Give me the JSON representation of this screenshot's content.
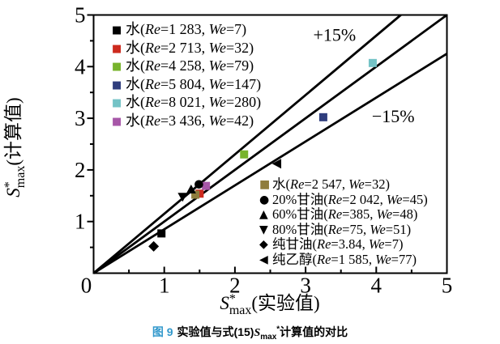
{
  "caption": {
    "fig": "图 9",
    "pre": "实验值与式(15)",
    "sym": "S",
    "sub": "max",
    "sup": "*",
    "post": "计算值的对比",
    "fig_color": "#3399cc"
  },
  "chart_data": {
    "type": "scatter",
    "xlim": [
      0,
      5
    ],
    "ylim": [
      0,
      5
    ],
    "grid": false,
    "x_major_ticks": [
      0,
      1,
      2,
      3,
      4,
      5
    ],
    "x_minor_ticks": [
      0.5,
      1.5,
      2.5,
      3.5,
      4.5
    ],
    "y_major_ticks": [
      1,
      2,
      3,
      4,
      5
    ],
    "y_minor_ticks": [
      0.5,
      1.5,
      2.5,
      3.5,
      4.5
    ],
    "axes": {
      "x_label": {
        "sym": "S",
        "sup": "*",
        "sub": "max",
        "rest": "(实验值)"
      },
      "y_label": {
        "sym": "S",
        "sup": "*",
        "sub": "max",
        "rest": "(计算值)"
      }
    },
    "lines": [
      {
        "slope": 1.15,
        "label": "+15%",
        "label_pos": [
          3.41,
          4.62
        ]
      },
      {
        "slope": 1.0,
        "label": "",
        "label_pos": null
      },
      {
        "slope": 0.85,
        "label": "−15%",
        "label_pos": [
          4.24,
          3.05
        ]
      }
    ],
    "legend_labels": {
      "re": "Re",
      "we": "We"
    },
    "marker_glyphs": {
      "square": "■",
      "circle": "●",
      "triangle-up": "▲",
      "triangle-down": "▼",
      "diamond": "◆",
      "triangle-left": "◀"
    },
    "series": [
      {
        "name": "水",
        "re": "1 283",
        "we": "7",
        "marker": "square",
        "color": "#000000",
        "legend": "top-left",
        "points": [
          [
            0.96,
            0.77
          ]
        ]
      },
      {
        "name": "水",
        "re": "2 713",
        "we": "32",
        "marker": "square",
        "color": "#cd2a1e",
        "legend": "top-left",
        "points": [
          [
            1.5,
            1.54
          ]
        ]
      },
      {
        "name": "水",
        "re": "4 258",
        "we": "79",
        "marker": "square",
        "color": "#77b32c",
        "legend": "top-left",
        "points": [
          [
            2.13,
            2.3
          ]
        ]
      },
      {
        "name": "水",
        "re": "5 804",
        "we": "147",
        "marker": "square",
        "color": "#2f3d7d",
        "legend": "top-left",
        "points": [
          [
            3.25,
            3.02
          ]
        ]
      },
      {
        "name": "水",
        "re": "8 021",
        "we": "280",
        "marker": "square",
        "color": "#74c3c6",
        "legend": "top-left",
        "points": [
          [
            3.95,
            4.07
          ]
        ]
      },
      {
        "name": "水",
        "re": "3 436",
        "we": "42",
        "marker": "square",
        "color": "#a757a8",
        "legend": "top-left",
        "points": [
          [
            1.59,
            1.69
          ]
        ]
      },
      {
        "name": "水",
        "re": "2 547",
        "we": "32",
        "marker": "square",
        "color": "#8f7d3d",
        "legend": "bottom-right",
        "points": [
          [
            1.44,
            1.52
          ]
        ]
      },
      {
        "name": "20%甘油",
        "re": "2 042",
        "we": "45",
        "marker": "circle",
        "color": "#000000",
        "legend": "bottom-right",
        "points": [
          [
            1.49,
            1.72
          ]
        ]
      },
      {
        "name": "60%甘油",
        "re": "385",
        "we": "48",
        "marker": "triangle-up",
        "color": "#000000",
        "legend": "bottom-right",
        "points": [
          [
            1.38,
            1.62
          ]
        ]
      },
      {
        "name": "80%甘油",
        "re": "75",
        "we": "51",
        "marker": "triangle-down",
        "color": "#000000",
        "legend": "bottom-right",
        "points": [
          [
            1.26,
            1.48
          ]
        ]
      },
      {
        "name": "纯甘油",
        "re": "3.84",
        "we": "7",
        "marker": "diamond",
        "color": "#000000",
        "legend": "bottom-right",
        "points": [
          [
            0.85,
            0.52
          ]
        ]
      },
      {
        "name": "纯乙醇",
        "re": "1 585",
        "we": "77",
        "marker": "triangle-left",
        "color": "#000000",
        "legend": "bottom-right",
        "points": [
          [
            2.6,
            2.12
          ]
        ]
      }
    ]
  }
}
